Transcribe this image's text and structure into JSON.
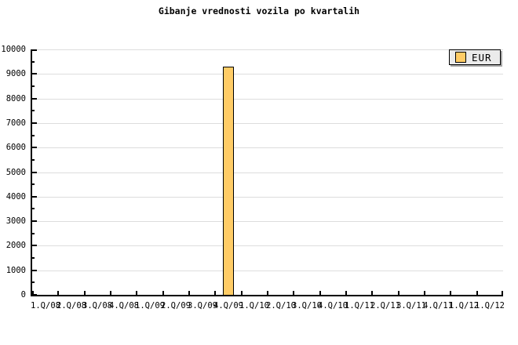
{
  "chart_data": {
    "type": "bar",
    "title": "Gibanje vrednosti vozila po kvartalih",
    "categories": [
      "1.Q/08",
      "2.Q/08",
      "3.Q/08",
      "4.Q/08",
      "1.Q/09",
      "2.Q/09",
      "3.Q/09",
      "4.Q/09",
      "1.Q/10",
      "2.Q/10",
      "3.Q/10",
      "4.Q/10",
      "1.Q/11",
      "2.Q/11",
      "3.Q/11",
      "4.Q/11",
      "1.Q/12",
      "1.Q/12"
    ],
    "series": [
      {
        "name": "EUR",
        "values": [
          null,
          null,
          null,
          null,
          null,
          null,
          null,
          9250,
          null,
          null,
          null,
          null,
          null,
          null,
          null,
          null,
          null,
          null
        ]
      }
    ],
    "xlabel": "",
    "ylabel": "",
    "ylim": [
      0,
      10000
    ],
    "y_tick_step": 1000,
    "y_minor_tick_step": 500,
    "y_tick_labels": [
      "0",
      "1000",
      "2000",
      "3000",
      "4000",
      "5000",
      "6000",
      "7000",
      "8000",
      "9000",
      "10000"
    ],
    "grid": "horizontal",
    "legend": {
      "position": "top-right",
      "entries": [
        "EUR"
      ]
    },
    "colors": {
      "bar_fill": "#ffcc66",
      "bar_border": "#000000",
      "gridline": "#dddddd",
      "axis": "#000000",
      "legend_bg": "#ebebeb",
      "legend_shadow": "#a6a6a6",
      "text": "#000000",
      "background": "#ffffff"
    }
  }
}
